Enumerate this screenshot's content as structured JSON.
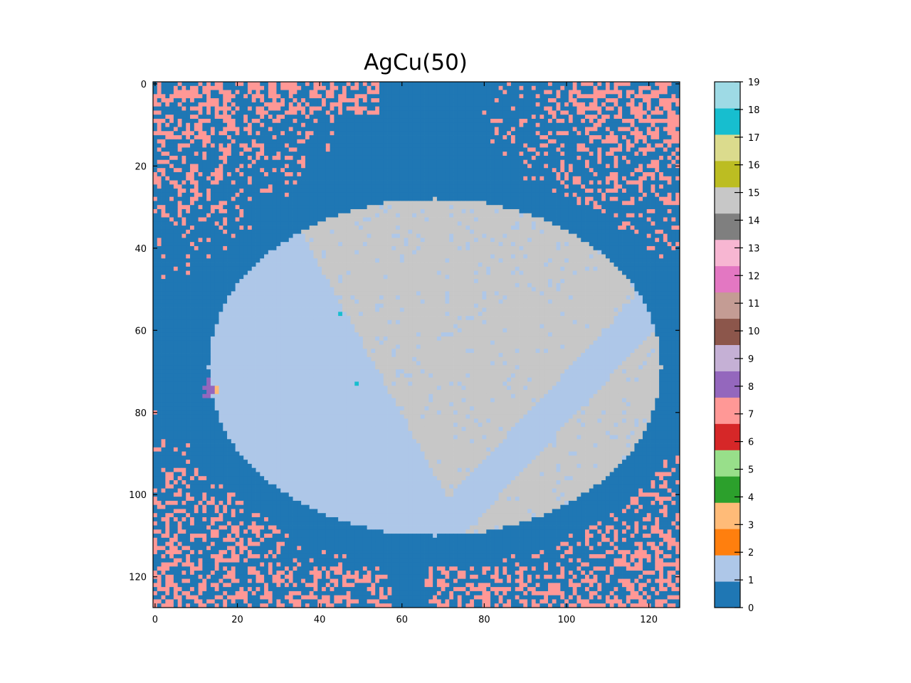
{
  "chart_data": {
    "type": "heatmap",
    "title": "AgCu(50)",
    "xlabel": "",
    "ylabel": "",
    "grid_size": [
      128,
      128
    ],
    "xlim": [
      -0.5,
      127.5
    ],
    "ylim": [
      127.5,
      -0.5
    ],
    "x_ticks": [
      0,
      20,
      40,
      60,
      80,
      100,
      120
    ],
    "y_ticks": [
      0,
      20,
      40,
      60,
      80,
      100,
      120
    ],
    "x_tick_labels": [
      "0",
      "20",
      "40",
      "60",
      "80",
      "100",
      "120"
    ],
    "y_tick_labels": [
      "0",
      "20",
      "40",
      "60",
      "80",
      "100",
      "120"
    ],
    "colormap": "tab20",
    "colorbar": {
      "ticks": [
        0,
        1,
        2,
        3,
        4,
        5,
        6,
        7,
        8,
        9,
        10,
        11,
        12,
        13,
        14,
        15,
        16,
        17,
        18,
        19
      ],
      "labels": [
        "0",
        "1",
        "2",
        "3",
        "4",
        "5",
        "6",
        "7",
        "8",
        "9",
        "10",
        "11",
        "12",
        "13",
        "14",
        "15",
        "16",
        "17",
        "18",
        "19"
      ],
      "colors": [
        "#1f77b4",
        "#aec7e8",
        "#ff7f0e",
        "#ffbb78",
        "#2ca02c",
        "#98df8a",
        "#d62728",
        "#ff9896",
        "#9467bd",
        "#c5b0d5",
        "#8c564b",
        "#c49c94",
        "#e377c2",
        "#f7b6d2",
        "#7f7f7f",
        "#c7c7c7",
        "#bcbd22",
        "#dbdb8d",
        "#17becf",
        "#9edae5"
      ]
    },
    "regions": [
      {
        "label_value": 0,
        "description_color": "#1f77b4",
        "role": "background"
      },
      {
        "label_value": 7,
        "description_color": "#ff9896",
        "role": "corner speckle"
      },
      {
        "label_value": 1,
        "description_color": "#aec7e8",
        "role": "left disc region and diagonal band"
      },
      {
        "label_value": 15,
        "description_color": "#c7c7c7",
        "role": "upper-right grain regions"
      },
      {
        "label_value": 8,
        "description_color": "#9467bd",
        "role": "small cluster"
      },
      {
        "label_value": 18,
        "description_color": "#17becf",
        "role": "single pixel"
      }
    ],
    "disc": {
      "center": [
        68,
        69
      ],
      "radius_x": 55,
      "radius_y": 41
    }
  }
}
